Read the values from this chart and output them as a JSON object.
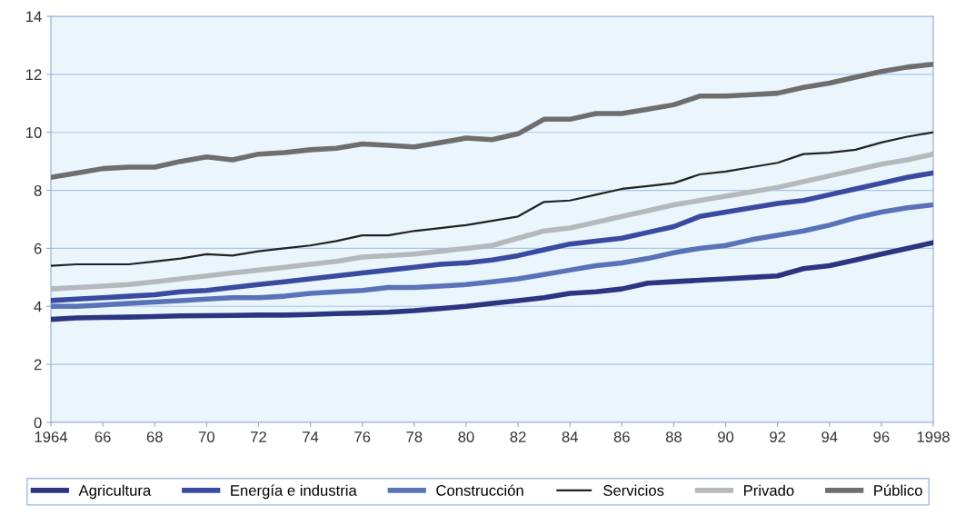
{
  "chart_data": {
    "type": "line",
    "x": [
      1964,
      1965,
      1966,
      1967,
      1968,
      1969,
      1970,
      1971,
      1972,
      1973,
      1974,
      1975,
      1976,
      1977,
      1978,
      1979,
      1980,
      1981,
      1982,
      1983,
      1984,
      1985,
      1986,
      1987,
      1988,
      1989,
      1990,
      1991,
      1992,
      1993,
      1994,
      1995,
      1996,
      1997,
      1998
    ],
    "series": [
      {
        "name": "Agricultura",
        "color": "#2b3580",
        "values": [
          3.55,
          3.6,
          3.62,
          3.63,
          3.65,
          3.67,
          3.68,
          3.69,
          3.7,
          3.7,
          3.72,
          3.75,
          3.77,
          3.8,
          3.85,
          3.92,
          4.0,
          4.1,
          4.2,
          4.3,
          4.45,
          4.5,
          4.6,
          4.8,
          4.85,
          4.9,
          4.95,
          5.0,
          5.05,
          5.3,
          5.4,
          5.6,
          5.8,
          6.0,
          6.2
        ]
      },
      {
        "name": "Energía e industria",
        "color": "#3a4aa0",
        "values": [
          4.2,
          4.25,
          4.3,
          4.35,
          4.4,
          4.5,
          4.55,
          4.65,
          4.75,
          4.85,
          4.95,
          5.05,
          5.15,
          5.25,
          5.35,
          5.45,
          5.5,
          5.6,
          5.75,
          5.95,
          6.15,
          6.25,
          6.35,
          6.55,
          6.75,
          7.1,
          7.25,
          7.4,
          7.55,
          7.65,
          7.85,
          8.05,
          8.25,
          8.45,
          8.6
        ]
      },
      {
        "name": "Construcción",
        "color": "#5a72b8",
        "values": [
          4.0,
          4.0,
          4.05,
          4.1,
          4.15,
          4.2,
          4.25,
          4.3,
          4.3,
          4.35,
          4.45,
          4.5,
          4.55,
          4.65,
          4.65,
          4.7,
          4.75,
          4.85,
          4.95,
          5.1,
          5.25,
          5.4,
          5.5,
          5.65,
          5.85,
          6.0,
          6.1,
          6.3,
          6.45,
          6.6,
          6.8,
          7.05,
          7.25,
          7.4,
          7.5
        ]
      },
      {
        "name": "Servicios",
        "color": "#222222",
        "values": [
          5.4,
          5.45,
          5.45,
          5.45,
          5.55,
          5.65,
          5.8,
          5.75,
          5.9,
          6.0,
          6.1,
          6.25,
          6.45,
          6.45,
          6.6,
          6.7,
          6.8,
          6.95,
          7.1,
          7.6,
          7.65,
          7.85,
          8.05,
          8.15,
          8.25,
          8.55,
          8.65,
          8.8,
          8.95,
          9.25,
          9.3,
          9.4,
          9.65,
          9.85,
          10.0
        ]
      },
      {
        "name": "Privado",
        "color": "#b5b8bc",
        "values": [
          4.6,
          4.65,
          4.7,
          4.75,
          4.85,
          4.95,
          5.05,
          5.15,
          5.25,
          5.35,
          5.45,
          5.55,
          5.7,
          5.75,
          5.8,
          5.9,
          6.0,
          6.1,
          6.35,
          6.6,
          6.7,
          6.9,
          7.1,
          7.3,
          7.5,
          7.65,
          7.8,
          7.95,
          8.1,
          8.3,
          8.5,
          8.7,
          8.9,
          9.05,
          9.25
        ]
      },
      {
        "name": "Público",
        "color": "#6e6e6e",
        "values": [
          8.45,
          8.6,
          8.75,
          8.8,
          8.8,
          9.0,
          9.15,
          9.05,
          9.25,
          9.3,
          9.4,
          9.45,
          9.6,
          9.55,
          9.5,
          9.65,
          9.8,
          9.75,
          9.95,
          10.45,
          10.45,
          10.65,
          10.65,
          10.8,
          10.95,
          11.25,
          11.25,
          11.3,
          11.35,
          11.55,
          11.7,
          11.9,
          12.1,
          12.25,
          12.35
        ]
      }
    ],
    "xlim": [
      1964,
      1998
    ],
    "xticks": [
      {
        "value": 1964,
        "label": "1964"
      },
      {
        "value": 1966,
        "label": "66"
      },
      {
        "value": 1968,
        "label": "68"
      },
      {
        "value": 1970,
        "label": "70"
      },
      {
        "value": 1972,
        "label": "72"
      },
      {
        "value": 1974,
        "label": "74"
      },
      {
        "value": 1976,
        "label": "76"
      },
      {
        "value": 1978,
        "label": "78"
      },
      {
        "value": 1980,
        "label": "80"
      },
      {
        "value": 1982,
        "label": "82"
      },
      {
        "value": 1984,
        "label": "84"
      },
      {
        "value": 1986,
        "label": "86"
      },
      {
        "value": 1988,
        "label": "88"
      },
      {
        "value": 1990,
        "label": "90"
      },
      {
        "value": 1992,
        "label": "92"
      },
      {
        "value": 1994,
        "label": "94"
      },
      {
        "value": 1996,
        "label": "96"
      },
      {
        "value": 1998,
        "label": "1998"
      }
    ],
    "ylim": [
      0,
      14
    ],
    "yticks": [
      0,
      2,
      4,
      6,
      8,
      10,
      12,
      14
    ],
    "grid": "y",
    "legend": "bottom",
    "marker": "none",
    "line_style": "solid"
  }
}
